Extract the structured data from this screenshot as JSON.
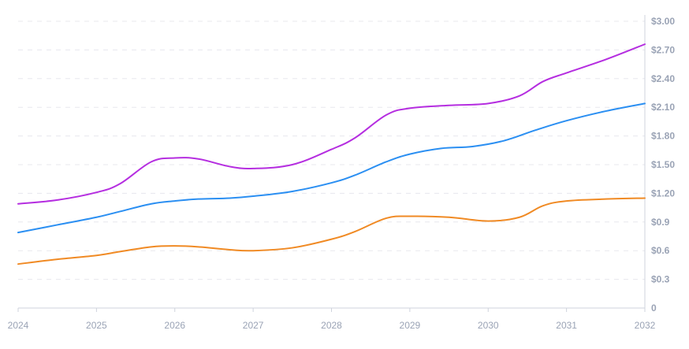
{
  "chart_data": {
    "type": "line",
    "title": "",
    "xlabel": "",
    "ylabel": "",
    "x": [
      2024,
      2025,
      2026,
      2027,
      2028,
      2029,
      2030,
      2031,
      2032
    ],
    "x_tick_labels": [
      "2024",
      "2025",
      "2026",
      "2027",
      "2028",
      "2029",
      "2030",
      "2031",
      "2032"
    ],
    "y_ticks": [
      0,
      0.3,
      0.6,
      0.9,
      1.2,
      1.5,
      1.8,
      2.1,
      2.4,
      2.7,
      3.0
    ],
    "y_tick_labels": [
      "0",
      "$0.3",
      "$0.6",
      "$0.9",
      "$1.20",
      "$1.50",
      "$1.80",
      "$2.10",
      "$2.40",
      "$2.70",
      "$3.00"
    ],
    "ylim": [
      0,
      3.0
    ],
    "xlim": [
      2024,
      2032
    ],
    "y_axis_position": "right",
    "grid": true,
    "legend": "none",
    "series": [
      {
        "color": "#b52ee0",
        "points": [
          [
            2024,
            1.09
          ],
          [
            2024.5,
            1.13
          ],
          [
            2025,
            1.21
          ],
          [
            2025.3,
            1.3
          ],
          [
            2025.7,
            1.53
          ],
          [
            2026,
            1.57
          ],
          [
            2026.3,
            1.56
          ],
          [
            2026.7,
            1.48
          ],
          [
            2027,
            1.46
          ],
          [
            2027.5,
            1.5
          ],
          [
            2028,
            1.66
          ],
          [
            2028.3,
            1.78
          ],
          [
            2028.7,
            2.02
          ],
          [
            2029,
            2.09
          ],
          [
            2029.5,
            2.12
          ],
          [
            2030,
            2.14
          ],
          [
            2030.4,
            2.22
          ],
          [
            2030.7,
            2.37
          ],
          [
            2031,
            2.46
          ],
          [
            2031.5,
            2.6
          ],
          [
            2032,
            2.76
          ]
        ]
      },
      {
        "color": "#2b8ff2",
        "points": [
          [
            2024,
            0.79
          ],
          [
            2024.5,
            0.87
          ],
          [
            2025,
            0.95
          ],
          [
            2025.3,
            1.01
          ],
          [
            2025.7,
            1.09
          ],
          [
            2026,
            1.12
          ],
          [
            2026.3,
            1.14
          ],
          [
            2026.7,
            1.15
          ],
          [
            2027,
            1.17
          ],
          [
            2027.5,
            1.22
          ],
          [
            2028,
            1.31
          ],
          [
            2028.3,
            1.39
          ],
          [
            2028.7,
            1.53
          ],
          [
            2029,
            1.61
          ],
          [
            2029.4,
            1.67
          ],
          [
            2029.8,
            1.69
          ],
          [
            2030.2,
            1.75
          ],
          [
            2030.6,
            1.86
          ],
          [
            2031,
            1.96
          ],
          [
            2031.5,
            2.06
          ],
          [
            2032,
            2.14
          ]
        ]
      },
      {
        "color": "#f08a24",
        "points": [
          [
            2024,
            0.46
          ],
          [
            2024.5,
            0.51
          ],
          [
            2025,
            0.55
          ],
          [
            2025.3,
            0.59
          ],
          [
            2025.7,
            0.64
          ],
          [
            2026,
            0.65
          ],
          [
            2026.3,
            0.64
          ],
          [
            2026.7,
            0.61
          ],
          [
            2027,
            0.6
          ],
          [
            2027.5,
            0.63
          ],
          [
            2028,
            0.72
          ],
          [
            2028.3,
            0.8
          ],
          [
            2028.7,
            0.94
          ],
          [
            2029,
            0.96
          ],
          [
            2029.5,
            0.95
          ],
          [
            2030,
            0.91
          ],
          [
            2030.4,
            0.95
          ],
          [
            2030.7,
            1.07
          ],
          [
            2031,
            1.12
          ],
          [
            2031.5,
            1.14
          ],
          [
            2032,
            1.15
          ]
        ]
      }
    ]
  }
}
